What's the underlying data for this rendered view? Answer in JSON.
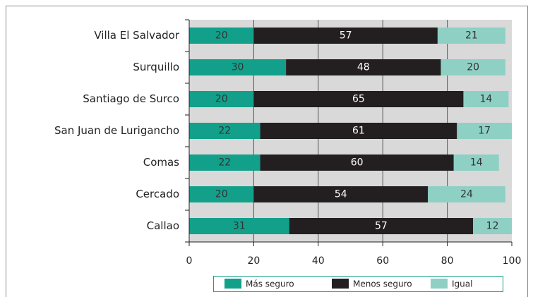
{
  "chart_data": {
    "type": "stacked_barh",
    "categories": [
      "Villa El Salvador",
      "Surquillo",
      "Santiago de Surco",
      "San Juan de Lurigancho",
      "Comas",
      "Cercado",
      "Callao"
    ],
    "series": [
      {
        "name": "Más seguro",
        "color": "#12a08a",
        "values": [
          20,
          30,
          20,
          22,
          22,
          20,
          31
        ]
      },
      {
        "name": "Menos seguro",
        "color": "#231f20",
        "values": [
          57,
          48,
          65,
          61,
          60,
          54,
          57
        ]
      },
      {
        "name": "Igual",
        "color": "#8fd0c4",
        "values": [
          21,
          20,
          14,
          17,
          14,
          24,
          12
        ]
      }
    ],
    "xlim": [
      0,
      100
    ],
    "xticks": [
      0,
      20,
      40,
      60,
      80,
      100
    ],
    "grid": true,
    "legend": "bottom"
  }
}
